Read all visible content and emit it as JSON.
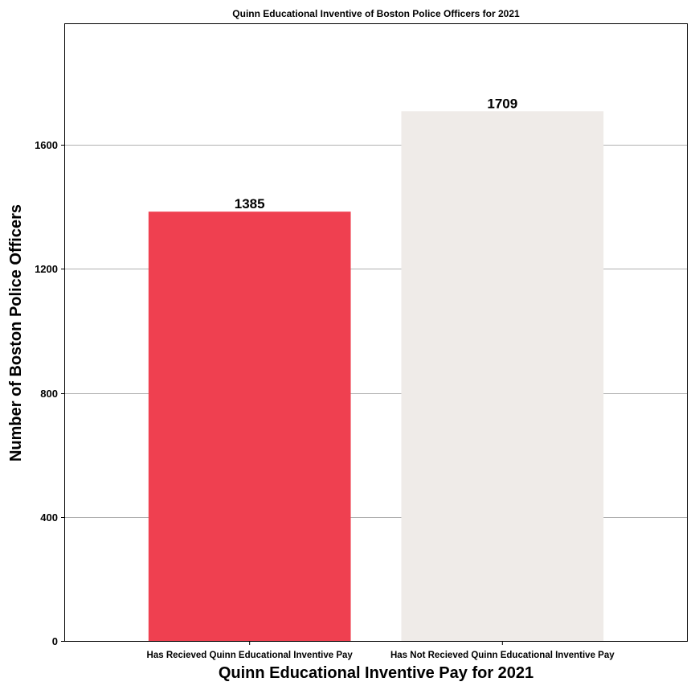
{
  "chart_data": {
    "type": "bar",
    "title": "Quinn Educational Inventive of Boston Police Officers for 2021",
    "xlabel": "Quinn Educational Inventive Pay for 2021",
    "ylabel": "Number of Boston Police Officers",
    "categories": [
      "Has Recieved Quinn Educational Inventive Pay",
      "Has Not Recieved Quinn Educational Inventive Pay"
    ],
    "values": [
      1385,
      1709
    ],
    "colors": [
      "#ef4050",
      "#efebe8"
    ],
    "ylim": [
      0,
      1990
    ],
    "yticks": [
      0,
      400,
      800,
      1200,
      1600
    ],
    "grid": "horizontal",
    "data_labels": true
  }
}
